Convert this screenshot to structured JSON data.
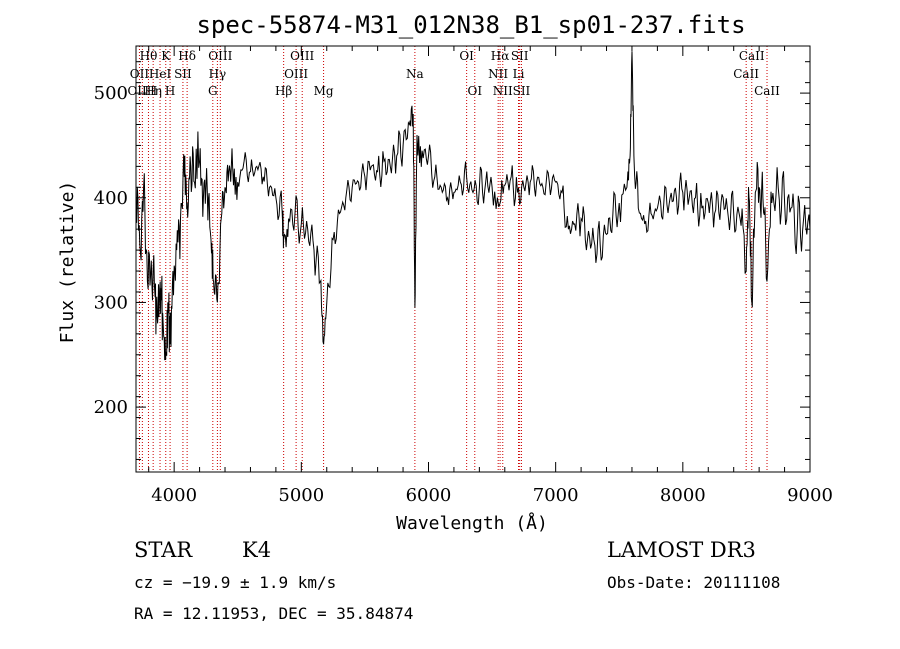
{
  "chart_data": {
    "type": "line",
    "title": "spec-55874-M31_012N38_B1_sp01-237.fits",
    "xlabel": "Wavelength (Å)",
    "ylabel": "Flux (relative)",
    "xlim": [
      3700,
      9000
    ],
    "ylim": [
      138,
      545
    ],
    "x_ticks": [
      4000,
      5000,
      6000,
      7000,
      8000,
      9000
    ],
    "x_tick_labels": [
      "4000",
      "5000",
      "6000",
      "7000",
      "8000",
      "9000"
    ],
    "y_ticks": [
      200,
      300,
      400,
      500
    ],
    "y_tick_labels": [
      "200",
      "300",
      "400",
      "500"
    ],
    "series": [
      {
        "name": "spectrum",
        "color": "#000000",
        "points": [
          [
            3700,
            395
          ],
          [
            3730,
            355
          ],
          [
            3760,
            410
          ],
          [
            3790,
            320
          ],
          [
            3820,
            340
          ],
          [
            3850,
            305
          ],
          [
            3870,
            280
          ],
          [
            3890,
            320
          ],
          [
            3910,
            290
          ],
          [
            3933,
            245
          ],
          [
            3950,
            300
          ],
          [
            3968,
            260
          ],
          [
            3990,
            330
          ],
          [
            4020,
            350
          ],
          [
            4050,
            380
          ],
          [
            4080,
            420
          ],
          [
            4102,
            395
          ],
          [
            4130,
            430
          ],
          [
            4160,
            415
          ],
          [
            4200,
            435
          ],
          [
            4230,
            400
          ],
          [
            4260,
            410
          ],
          [
            4290,
            360
          ],
          [
            4310,
            320
          ],
          [
            4340,
            300
          ],
          [
            4370,
            380
          ],
          [
            4400,
            410
          ],
          [
            4430,
            425
          ],
          [
            4460,
            430
          ],
          [
            4500,
            415
          ],
          [
            4550,
            435
          ],
          [
            4600,
            425
          ],
          [
            4650,
            430
          ],
          [
            4700,
            420
          ],
          [
            4750,
            410
          ],
          [
            4800,
            400
          ],
          [
            4850,
            385
          ],
          [
            4861,
            360
          ],
          [
            4900,
            380
          ],
          [
            4950,
            385
          ],
          [
            5000,
            375
          ],
          [
            5050,
            370
          ],
          [
            5100,
            350
          ],
          [
            5150,
            320
          ],
          [
            5175,
            260
          ],
          [
            5200,
            300
          ],
          [
            5250,
            360
          ],
          [
            5300,
            385
          ],
          [
            5350,
            400
          ],
          [
            5400,
            410
          ],
          [
            5450,
            415
          ],
          [
            5500,
            420
          ],
          [
            5550,
            430
          ],
          [
            5600,
            425
          ],
          [
            5650,
            435
          ],
          [
            5700,
            430
          ],
          [
            5750,
            440
          ],
          [
            5800,
            450
          ],
          [
            5850,
            470
          ],
          [
            5880,
            480
          ],
          [
            5893,
            295
          ],
          [
            5910,
            460
          ],
          [
            5950,
            445
          ],
          [
            6000,
            440
          ],
          [
            6050,
            420
          ],
          [
            6100,
            410
          ],
          [
            6150,
            400
          ],
          [
            6200,
            405
          ],
          [
            6250,
            415
          ],
          [
            6300,
            420
          ],
          [
            6350,
            405
          ],
          [
            6400,
            410
          ],
          [
            6450,
            415
          ],
          [
            6500,
            410
          ],
          [
            6563,
            395
          ],
          [
            6600,
            412
          ],
          [
            6650,
            420
          ],
          [
            6700,
            405
          ],
          [
            6750,
            410
          ],
          [
            6800,
            415
          ],
          [
            6850,
            415
          ],
          [
            6900,
            410
          ],
          [
            6950,
            415
          ],
          [
            7000,
            415
          ],
          [
            7050,
            405
          ],
          [
            7100,
            370
          ],
          [
            7150,
            375
          ],
          [
            7200,
            380
          ],
          [
            7250,
            360
          ],
          [
            7300,
            360
          ],
          [
            7350,
            355
          ],
          [
            7400,
            365
          ],
          [
            7450,
            385
          ],
          [
            7500,
            395
          ],
          [
            7560,
            410
          ],
          [
            7585,
            440
          ],
          [
            7600,
            540
          ],
          [
            7615,
            440
          ],
          [
            7650,
            390
          ],
          [
            7700,
            375
          ],
          [
            7750,
            385
          ],
          [
            7800,
            390
          ],
          [
            7850,
            395
          ],
          [
            7900,
            400
          ],
          [
            7950,
            400
          ],
          [
            8000,
            405
          ],
          [
            8050,
            400
          ],
          [
            8100,
            400
          ],
          [
            8150,
            390
          ],
          [
            8200,
            395
          ],
          [
            8250,
            385
          ],
          [
            8300,
            395
          ],
          [
            8350,
            390
          ],
          [
            8400,
            385
          ],
          [
            8450,
            380
          ],
          [
            8498,
            330
          ],
          [
            8520,
            400
          ],
          [
            8542,
            300
          ],
          [
            8570,
            405
          ],
          [
            8600,
            410
          ],
          [
            8630,
            400
          ],
          [
            8662,
            320
          ],
          [
            8700,
            395
          ],
          [
            8750,
            410
          ],
          [
            8800,
            395
          ],
          [
            8850,
            390
          ],
          [
            8900,
            370
          ],
          [
            8950,
            380
          ],
          [
            9000,
            370
          ]
        ]
      }
    ],
    "line_markers": [
      {
        "label": "OII",
        "wavelength": 3727,
        "row": 2
      },
      {
        "label": "Hθ",
        "wavelength": 3798,
        "row": 1
      },
      {
        "label": "OIIH",
        "wavelength": 3750,
        "row": 3
      },
      {
        "label": "Hη",
        "wavelength": 3835,
        "row": 3
      },
      {
        "label": "HeI",
        "wavelength": 3889,
        "row": 2
      },
      {
        "label": "K",
        "wavelength": 3934,
        "row": 1
      },
      {
        "label": "H",
        "wavelength": 3968,
        "row": 3
      },
      {
        "label": "SII",
        "wavelength": 4069,
        "row": 2
      },
      {
        "label": "Hδ",
        "wavelength": 4102,
        "row": 1
      },
      {
        "label": "OIII",
        "wavelength": 4363,
        "row": 1
      },
      {
        "label": "Hγ",
        "wavelength": 4340,
        "row": 2
      },
      {
        "label": "G",
        "wavelength": 4304,
        "row": 3
      },
      {
        "label": "Hβ",
        "wavelength": 4861,
        "row": 3
      },
      {
        "label": "OIII",
        "wavelength": 5007,
        "row": 1
      },
      {
        "label": "OIII",
        "wavelength": 4959,
        "row": 2
      },
      {
        "label": "Mg",
        "wavelength": 5175,
        "row": 3
      },
      {
        "label": "Na",
        "wavelength": 5893,
        "row": 2
      },
      {
        "label": "OI",
        "wavelength": 6300,
        "row": 1
      },
      {
        "label": "OI",
        "wavelength": 6364,
        "row": 3
      },
      {
        "label": "Hα",
        "wavelength": 6563,
        "row": 1
      },
      {
        "label": "NII",
        "wavelength": 6548,
        "row": 2
      },
      {
        "label": "NII",
        "wavelength": 6584,
        "row": 3
      },
      {
        "label": "SII",
        "wavelength": 6717,
        "row": 1
      },
      {
        "label": "Li",
        "wavelength": 6708,
        "row": 2
      },
      {
        "label": "SII",
        "wavelength": 6731,
        "row": 3
      },
      {
        "label": "CaII",
        "wavelength": 8542,
        "row": 1
      },
      {
        "label": "CaII",
        "wavelength": 8498,
        "row": 2
      },
      {
        "label": "CaII",
        "wavelength": 8662,
        "row": 3
      }
    ],
    "marker_color": "#cc0000"
  },
  "info": {
    "object_class": "STAR",
    "subclass": "K4",
    "velocity": "cz = −19.9 ± 1.9 km/s",
    "coordinates": "RA =  12.11953, DEC =  35.84874",
    "survey": "LAMOST DR3",
    "obs_date": "Obs-Date: 20111108"
  }
}
